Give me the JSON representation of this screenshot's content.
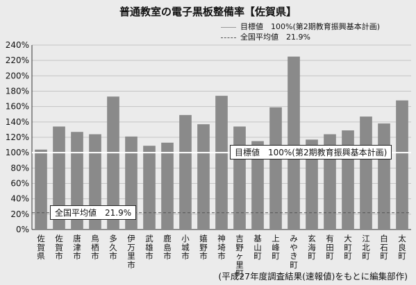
{
  "title": "普通教室の電子黒板整備率【佐賀県】",
  "legend": {
    "target": "目標値　100%(第2期教育振興基本計画)",
    "average": "全国平均値　21.9%"
  },
  "annotations": {
    "target": "目標値　100%(第2期教育振興基本計画)",
    "average": "全国平均値　21.9%"
  },
  "source": "(平成27年度調査結果(速報値)をもとに編集部作)",
  "colors": {
    "bar": "#8a8a8a",
    "background": "#ebebeb",
    "target_line": "#ffffff",
    "average_line": "#555555"
  },
  "chart_data": {
    "type": "bar",
    "categories": [
      "佐賀県",
      "佐賀市",
      "唐津市",
      "鳥栖市",
      "多久市",
      "伊万里市",
      "武雄市",
      "鹿島市",
      "小城市",
      "嬉野市",
      "神埼市",
      "吉野ヶ里町",
      "基山町",
      "上峰町",
      "みやき町",
      "玄海町",
      "有田町",
      "大町町",
      "江北町",
      "白石町",
      "太良町"
    ],
    "values": [
      104,
      134,
      127,
      124,
      173,
      121,
      109,
      113,
      149,
      137,
      174,
      134,
      115,
      159,
      225,
      117,
      124,
      129,
      147,
      138,
      168
    ],
    "ylim": [
      0,
      240
    ],
    "yticks": [
      "0%",
      "20%",
      "40%",
      "60%",
      "80%",
      "100%",
      "120%",
      "140%",
      "160%",
      "180%",
      "200%",
      "220%",
      "240%"
    ],
    "reference_lines": [
      {
        "name": "目標値",
        "value": 100
      },
      {
        "name": "全国平均値",
        "value": 21.9
      }
    ],
    "grid": true
  }
}
